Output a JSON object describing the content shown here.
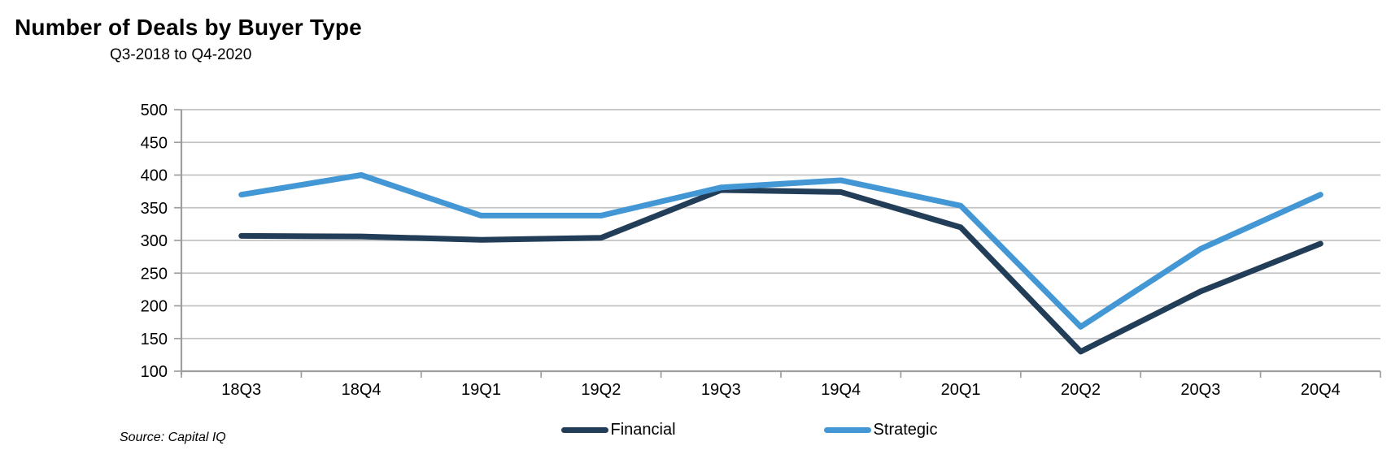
{
  "page": {
    "title": "Number of Deals by Buyer Type",
    "subtitle": "Q3-2018 to Q4-2020",
    "source": "Source: Capital IQ"
  },
  "chart_data": {
    "type": "line",
    "title": "Number of Deals by Buyer Type",
    "subtitle": "Q3-2018 to Q4-2020",
    "categories": [
      "18Q3",
      "18Q4",
      "19Q1",
      "19Q2",
      "19Q3",
      "19Q4",
      "20Q1",
      "20Q2",
      "20Q3",
      "20Q4"
    ],
    "series": [
      {
        "name": "Financial",
        "color": "#223D57",
        "values": [
          307,
          306,
          301,
          304,
          377,
          374,
          320,
          130,
          222,
          295
        ]
      },
      {
        "name": "Strategic",
        "color": "#4397D4",
        "values": [
          370,
          400,
          338,
          338,
          381,
          392,
          353,
          168,
          287,
          370
        ]
      }
    ],
    "ylim": [
      100,
      500
    ],
    "ytick_step": 50,
    "grid": "horizontal",
    "legend_position": "bottom",
    "source_note": "Source: Capital IQ",
    "colors": {
      "gridline": "#C3C3C3",
      "axis": "#9E9E9E",
      "text": "#000000"
    }
  }
}
